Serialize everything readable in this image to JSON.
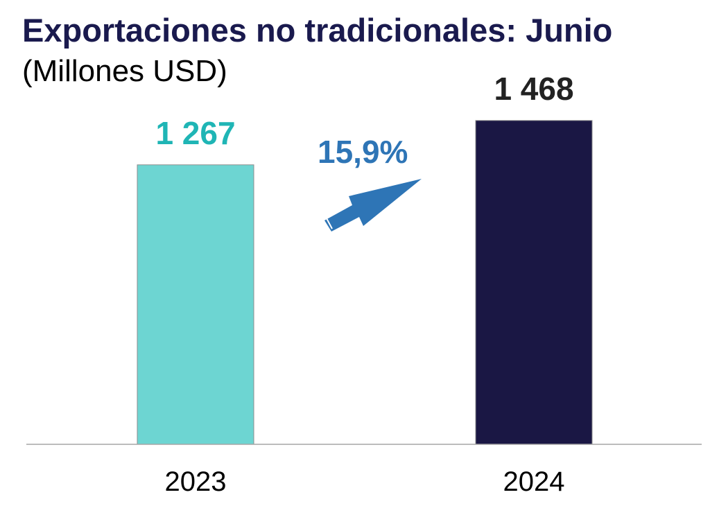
{
  "chart_data": {
    "type": "bar",
    "title": "Exportaciones no tradicionales: Junio",
    "subtitle": "(Millones USD)",
    "categories": [
      "2023",
      "2024"
    ],
    "values": [
      1267,
      1468
    ],
    "value_labels": [
      "1 267",
      "1 468"
    ],
    "bar_colors": [
      "#6dd5d2",
      "#1a1744"
    ],
    "value_label_colors": [
      "#1fb5b5",
      "#222222"
    ],
    "growth": {
      "label": "15,9%",
      "color": "#2e75b6",
      "direction": "up-arrow"
    },
    "ylim": [
      0,
      1700
    ],
    "grid": false,
    "legend": "none"
  }
}
